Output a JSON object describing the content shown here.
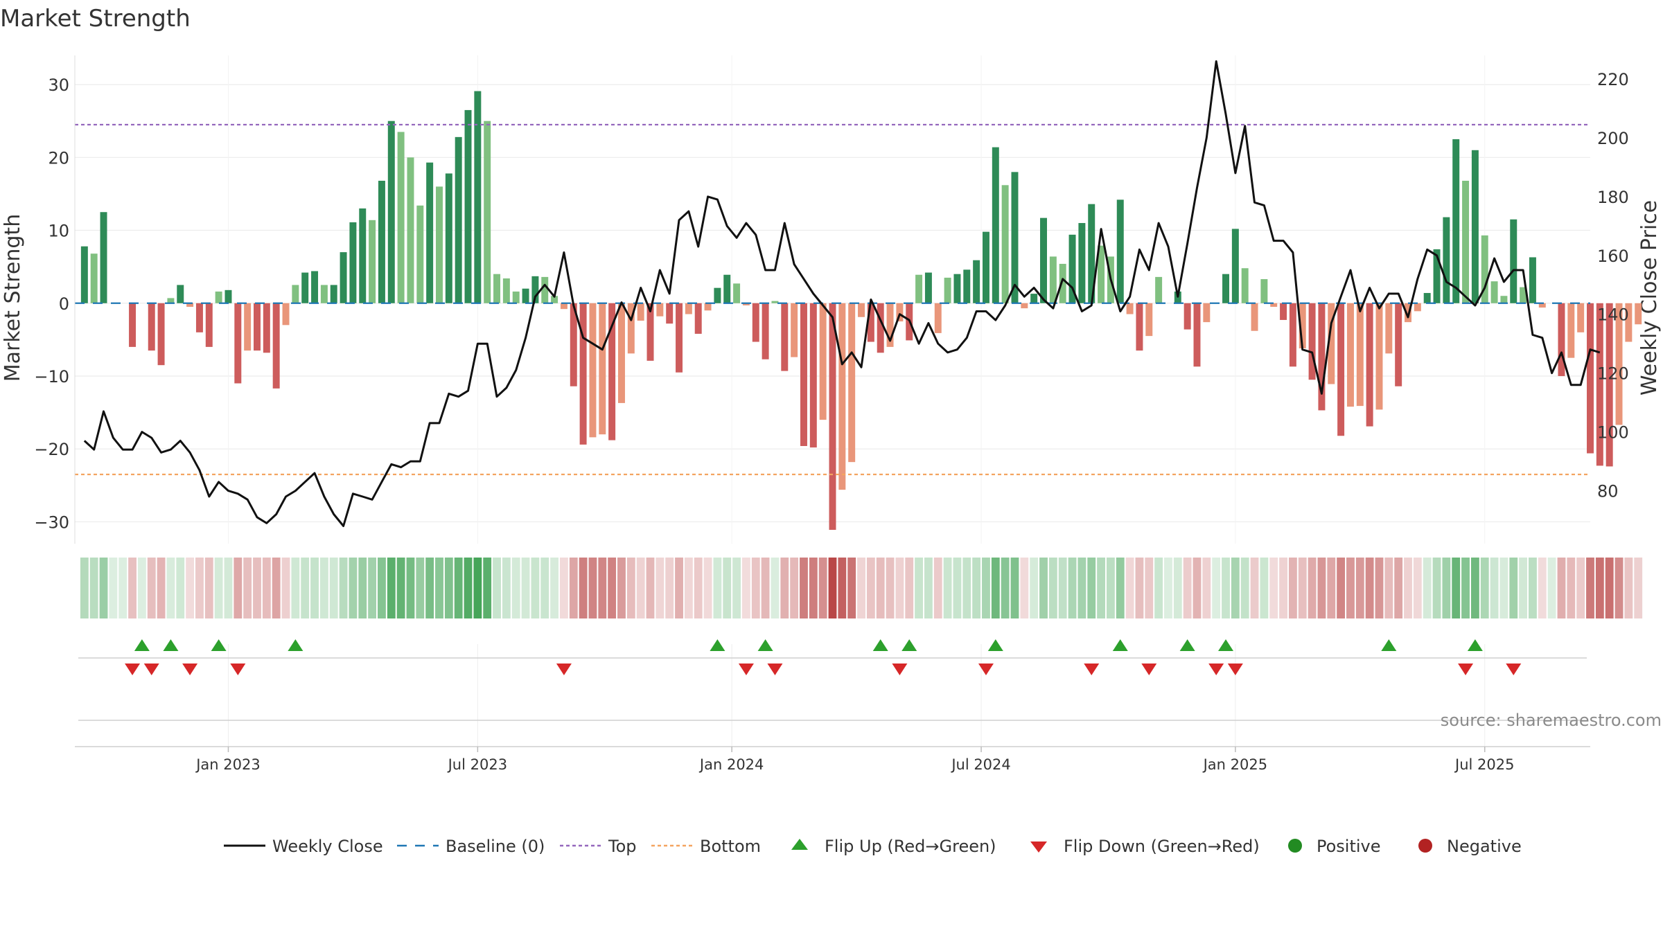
{
  "chart_data": {
    "type": "bar",
    "title": "Market Strength",
    "ylabel": "Market Strength",
    "y2label": "Weekly Close Price",
    "ylim": [
      -33,
      34
    ],
    "y2lim": [
      62,
      228
    ],
    "yticks": [
      30,
      20,
      10,
      0,
      -10,
      -20,
      -30
    ],
    "ytick_labels": [
      "30",
      "20",
      "10",
      "0",
      "−10",
      "−20",
      "−30"
    ],
    "y2ticks": [
      220,
      200,
      180,
      160,
      140,
      120,
      100,
      80
    ],
    "y2tick_labels": [
      "220",
      "200",
      "180",
      "160",
      "140",
      "120",
      "100",
      "80"
    ],
    "week_range": [
      -1,
      157
    ],
    "x_ticks": [
      {
        "week": 15,
        "label": "Jan 2023"
      },
      {
        "week": 41,
        "label": "Jul 2023"
      },
      {
        "week": 67.5,
        "label": "Jan 2024"
      },
      {
        "week": 93.5,
        "label": "Jul 2024"
      },
      {
        "week": 120,
        "label": "Jan 2025"
      },
      {
        "week": 146,
        "label": "Jul 2025"
      }
    ],
    "top_threshold": 24.5,
    "bottom_threshold": -23.5,
    "baseline": 0,
    "strength": [
      7.8,
      6.8,
      12.5,
      0,
      0,
      -6,
      0,
      -6.5,
      -8.5,
      0.7,
      2.5,
      -0.5,
      -4,
      -6,
      1.6,
      1.8,
      -11,
      -6.5,
      -6.5,
      -6.8,
      -11.7,
      -3,
      2.5,
      4.2,
      4.4,
      2.5,
      2.5,
      7,
      11.1,
      13,
      11.4,
      16.8,
      25,
      23.5,
      20,
      13.4,
      19.3,
      16,
      17.8,
      22.8,
      26.5,
      29.1,
      25,
      4,
      3.4,
      1.6,
      2,
      3.7,
      3.6,
      1,
      -0.8,
      -11.4,
      -19.4,
      -18.4,
      -18,
      -18.8,
      -13.7,
      -6.9,
      -2.4,
      -7.9,
      -1.8,
      -2.8,
      -9.5,
      -1.5,
      -4.2,
      -1,
      2.1,
      3.9,
      2.7,
      -0.3,
      -5.3,
      -7.7,
      0.3,
      -9.3,
      -7.4,
      -19.6,
      -19.8,
      -16,
      -31.1,
      -25.6,
      -21.8,
      -1.9,
      -5.3,
      -6.8,
      -6,
      -2.5,
      -5.1,
      3.9,
      4.2,
      -4.1,
      3.5,
      4,
      4.6,
      5.9,
      9.8,
      21.4,
      16.2,
      18,
      -0.7,
      1.3,
      11.7,
      6.4,
      5.4,
      9.4,
      11,
      13.6,
      7.9,
      6.4,
      14.2,
      -1.5,
      -6.5,
      -4.5,
      3.6,
      0,
      1.6,
      -3.6,
      -8.7,
      -2.6,
      0,
      4,
      10.2,
      4.8,
      -3.8,
      3.3,
      -0.5,
      -2.3,
      -8.7,
      -6.2,
      -10.5,
      -14.7,
      -11.1,
      -18.2,
      -14.2,
      -14.1,
      -16.9,
      -14.6,
      -6.9,
      -11.4,
      -2.6,
      -1.1,
      1.4,
      7.4,
      11.8,
      22.5,
      16.8,
      21,
      9.3,
      3,
      1,
      11.5,
      2.2,
      6.3,
      -0.6,
      0,
      -10,
      -7.5,
      -4,
      -20.6,
      -22.3,
      -22.4,
      -16.7,
      -5.3,
      -2.9
    ],
    "weekly_close": [
      97,
      94,
      107,
      98,
      94,
      94,
      100,
      98,
      93,
      94,
      97,
      93,
      87,
      78,
      83,
      80,
      79,
      77,
      71,
      69,
      72,
      78,
      80,
      83,
      86,
      78,
      72,
      68,
      79,
      78,
      77,
      83,
      89,
      88,
      90,
      90,
      103,
      103,
      113,
      112,
      114,
      130,
      130,
      112,
      115,
      121,
      132,
      146,
      150,
      146,
      161,
      143,
      132,
      130,
      128,
      136,
      144,
      138,
      149,
      141,
      155,
      147,
      172,
      175,
      163,
      180,
      179,
      170,
      166,
      171,
      167,
      155,
      155,
      171,
      157,
      152,
      147,
      143,
      139,
      123,
      127,
      122,
      145,
      138,
      131,
      140,
      138,
      130,
      137,
      130,
      127,
      128,
      132,
      141,
      141,
      138,
      143,
      150,
      146,
      149,
      145,
      142,
      152,
      149,
      141,
      143,
      169,
      152,
      141,
      146,
      162,
      155,
      171,
      163,
      146,
      164,
      183,
      200,
      226,
      208,
      188,
      204,
      178,
      177,
      165,
      165,
      161,
      128,
      127,
      113,
      137,
      146,
      155,
      141,
      149,
      142,
      147,
      147,
      139,
      152,
      162,
      160,
      151,
      149,
      146,
      143,
      149,
      159,
      151,
      155,
      155,
      133,
      132,
      120,
      127,
      116,
      116,
      128,
      127
    ],
    "flip_up_weeks": [
      6,
      9,
      14,
      22,
      66,
      71,
      83,
      86,
      95,
      108,
      115,
      119,
      136,
      145
    ],
    "flip_down_weeks": [
      5,
      7,
      11,
      16,
      50,
      69,
      72,
      85,
      94,
      105,
      111,
      118,
      120,
      144,
      149
    ],
    "legend": [
      {
        "key": "close",
        "label": "Weekly Close"
      },
      {
        "key": "baseline",
        "label": "Baseline (0)"
      },
      {
        "key": "top",
        "label": "Top"
      },
      {
        "key": "bottom",
        "label": "Bottom"
      },
      {
        "key": "flip_up",
        "label": "Flip Up (Red→Green)"
      },
      {
        "key": "flip_down",
        "label": "Flip Down (Green→Red)"
      },
      {
        "key": "positive",
        "label": "Positive"
      },
      {
        "key": "negative",
        "label": "Negative"
      }
    ],
    "colors": {
      "pos_dark": "#2e8b57",
      "pos_light": "#80c080",
      "neg_dark": "#cd5c5c",
      "neg_light": "#e9967a",
      "close": "#111111",
      "baseline": "#1f77b4",
      "top": "#9467bd",
      "bottom": "#f4a460",
      "flip_up": "#2ca02c",
      "flip_down": "#d62728",
      "positive": "#228b22",
      "negative": "#b22222"
    }
  },
  "source": "source: sharemaestro.com"
}
